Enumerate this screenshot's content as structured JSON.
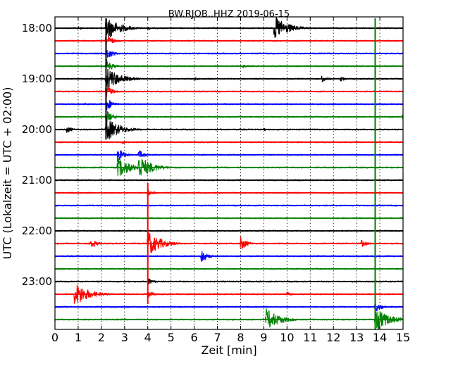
{
  "chart_data": {
    "type": "line",
    "title": "BW.RJOB..HHZ 2019-06-15",
    "xlabel": "Zeit  [min]",
    "ylabel": "UTC (Lokalzeit = UTC + 02:00)",
    "xlim": [
      0,
      15
    ],
    "x_ticks": [
      "0",
      "1",
      "2",
      "3",
      "4",
      "5",
      "6",
      "7",
      "8",
      "9",
      "10",
      "11",
      "12",
      "13",
      "14",
      "15"
    ],
    "y_tick_labels": [
      "18:00",
      "19:00",
      "20:00",
      "21:00",
      "22:00",
      "23:00"
    ],
    "grid": true,
    "trace_colors": [
      "#000000",
      "#ff0000",
      "#0000ff",
      "#008000"
    ],
    "traces": [
      {
        "start": "18:00",
        "color": "#000000",
        "events": [
          {
            "t": 2.2,
            "amp": 1.0
          },
          {
            "t": 9.45,
            "amp": 1.0
          },
          {
            "t": 1.0,
            "amp": 0.15
          },
          {
            "t": 4.0,
            "amp": 0.15
          }
        ]
      },
      {
        "start": "18:15",
        "color": "#ff0000",
        "events": [
          {
            "t": 2.2,
            "amp": 0.6
          }
        ]
      },
      {
        "start": "18:30",
        "color": "#0000ff",
        "events": [
          {
            "t": 2.2,
            "amp": 0.6
          }
        ]
      },
      {
        "start": "18:45",
        "color": "#008000",
        "events": [
          {
            "t": 2.2,
            "amp": 0.6
          },
          {
            "t": 8.1,
            "amp": 0.15
          }
        ]
      },
      {
        "start": "19:00",
        "color": "#000000",
        "events": [
          {
            "t": 2.2,
            "amp": 1.0
          },
          {
            "t": 6.0,
            "amp": 0.15
          },
          {
            "t": 11.5,
            "amp": 0.3
          },
          {
            "t": 12.3,
            "amp": 0.2
          }
        ]
      },
      {
        "start": "19:15",
        "color": "#ff0000",
        "events": [
          {
            "t": 2.2,
            "amp": 0.6
          }
        ]
      },
      {
        "start": "19:30",
        "color": "#0000ff",
        "events": [
          {
            "t": 2.2,
            "amp": 0.6
          },
          {
            "t": 1.3,
            "amp": 0.1
          }
        ]
      },
      {
        "start": "19:45",
        "color": "#008000",
        "events": [
          {
            "t": 2.2,
            "amp": 0.6
          },
          {
            "t": 15.0,
            "amp": 0.4
          }
        ]
      },
      {
        "start": "20:00",
        "color": "#000000",
        "events": [
          {
            "t": 0.5,
            "amp": 0.3
          },
          {
            "t": 2.2,
            "amp": 1.0
          },
          {
            "t": 9.0,
            "amp": 0.1
          }
        ]
      },
      {
        "start": "20:15",
        "color": "#ff0000",
        "events": [
          {
            "t": 2.9,
            "amp": 0.15
          }
        ]
      },
      {
        "start": "20:30",
        "color": "#0000ff",
        "events": [
          {
            "t": 2.7,
            "amp": 0.6
          },
          {
            "t": 3.6,
            "amp": 0.4
          }
        ]
      },
      {
        "start": "20:45",
        "color": "#008000",
        "events": [
          {
            "t": 2.7,
            "amp": 0.8
          },
          {
            "t": 3.6,
            "amp": 1.0
          }
        ]
      },
      {
        "start": "21:00",
        "color": "#000000",
        "events": []
      },
      {
        "start": "21:15",
        "color": "#ff0000",
        "events": [
          {
            "t": 4.0,
            "amp": 0.3
          }
        ]
      },
      {
        "start": "21:30",
        "color": "#0000ff",
        "events": []
      },
      {
        "start": "21:45",
        "color": "#008000",
        "events": []
      },
      {
        "start": "22:00",
        "color": "#000000",
        "events": []
      },
      {
        "start": "22:15",
        "color": "#ff0000",
        "events": [
          {
            "t": 1.5,
            "amp": 0.5
          },
          {
            "t": 4.0,
            "amp": 1.0
          },
          {
            "t": 8.0,
            "amp": 0.6
          },
          {
            "t": 13.2,
            "amp": 0.3
          }
        ]
      },
      {
        "start": "22:30",
        "color": "#0000ff",
        "events": [
          {
            "t": 6.3,
            "amp": 0.6
          }
        ]
      },
      {
        "start": "22:45",
        "color": "#008000",
        "events": []
      },
      {
        "start": "23:00",
        "color": "#000000",
        "events": [
          {
            "t": 4.0,
            "amp": 0.3
          }
        ]
      },
      {
        "start": "23:15",
        "color": "#ff0000",
        "events": [
          {
            "t": 0.85,
            "amp": 1.0
          },
          {
            "t": 4.0,
            "amp": 0.3
          },
          {
            "t": 10.0,
            "amp": 0.2
          }
        ]
      },
      {
        "start": "23:30",
        "color": "#0000ff",
        "events": [
          {
            "t": 13.8,
            "amp": 0.5
          }
        ]
      },
      {
        "start": "23:45",
        "color": "#008000",
        "events": [
          {
            "t": 9.1,
            "amp": 0.9
          },
          {
            "t": 13.8,
            "amp": 1.0
          }
        ]
      }
    ],
    "spike_lines": [
      {
        "t": 2.2,
        "from": "18:00",
        "to": "20:00",
        "color": "#000000"
      },
      {
        "t": 4.0,
        "from": "21:15",
        "to": "23:15",
        "color": "#ff0000"
      },
      {
        "t": 13.8,
        "from": "18:00",
        "to": "23:45",
        "color": "#008000"
      }
    ]
  }
}
